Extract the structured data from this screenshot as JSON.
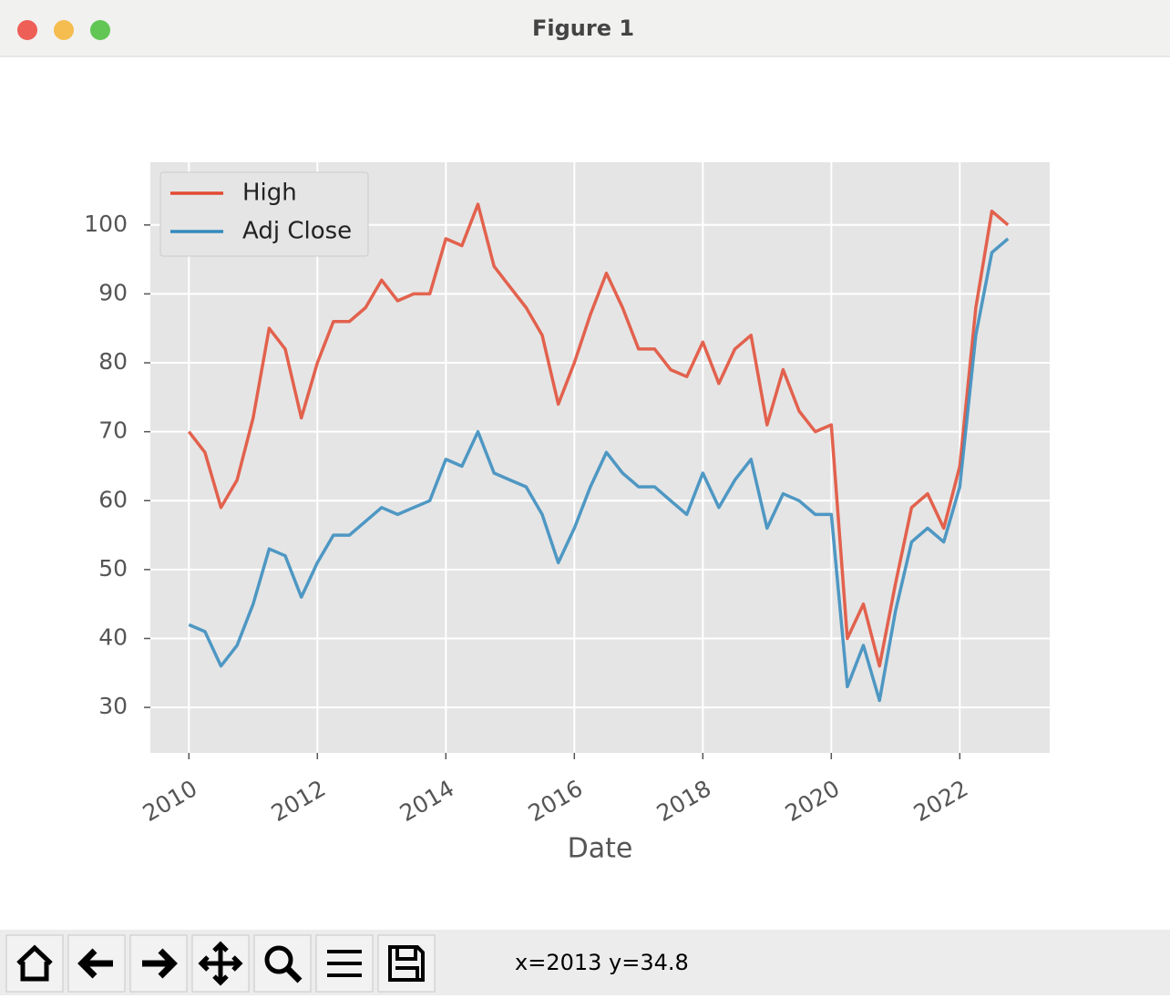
{
  "window": {
    "title": "Figure 1"
  },
  "statusbar": {
    "text": "x=2013 y=34.8"
  },
  "chart_data": {
    "type": "line",
    "xlabel": "Date",
    "x": [
      2010.0,
      2010.25,
      2010.5,
      2010.75,
      2011.0,
      2011.25,
      2011.5,
      2011.75,
      2012.0,
      2012.25,
      2012.5,
      2012.75,
      2013.0,
      2013.25,
      2013.5,
      2013.75,
      2014.0,
      2014.25,
      2014.5,
      2014.75,
      2015.0,
      2015.25,
      2015.5,
      2015.75,
      2016.0,
      2016.25,
      2016.5,
      2016.75,
      2017.0,
      2017.25,
      2017.5,
      2017.75,
      2018.0,
      2018.25,
      2018.5,
      2018.75,
      2019.0,
      2019.25,
      2019.5,
      2019.75,
      2020.0,
      2020.25,
      2020.5,
      2020.75,
      2021.0,
      2021.25,
      2021.5,
      2021.75,
      2022.0,
      2022.25,
      2022.5,
      2022.75
    ],
    "series": [
      {
        "name": "High",
        "color": "#e24a33",
        "values": [
          70,
          67,
          59,
          63,
          72,
          85,
          82,
          72,
          80,
          86,
          86,
          88,
          92,
          89,
          90,
          90,
          98,
          97,
          103,
          94,
          91,
          88,
          84,
          74,
          80,
          87,
          93,
          88,
          82,
          82,
          79,
          78,
          83,
          77,
          82,
          84,
          71,
          79,
          73,
          70,
          71,
          40,
          45,
          36,
          48,
          59,
          61,
          56,
          65,
          88,
          102,
          100
        ]
      },
      {
        "name": "Adj Close",
        "color": "#348abd",
        "values": [
          42,
          41,
          36,
          39,
          45,
          53,
          52,
          46,
          51,
          55,
          55,
          57,
          59,
          58,
          59,
          60,
          66,
          65,
          70,
          64,
          63,
          62,
          58,
          51,
          56,
          62,
          67,
          64,
          62,
          62,
          60,
          58,
          64,
          59,
          63,
          66,
          56,
          61,
          60,
          58,
          58,
          33,
          39,
          31,
          44,
          54,
          56,
          54,
          62,
          84,
          96,
          98
        ]
      }
    ],
    "xlim": [
      2009.4,
      2023.4
    ],
    "xticks": [
      2010,
      2012,
      2014,
      2016,
      2018,
      2020,
      2022
    ],
    "ylim": [
      23.4,
      109.1
    ],
    "yticks": [
      30,
      40,
      50,
      60,
      70,
      80,
      90,
      100
    ],
    "grid": true,
    "legend": "upper-left"
  }
}
